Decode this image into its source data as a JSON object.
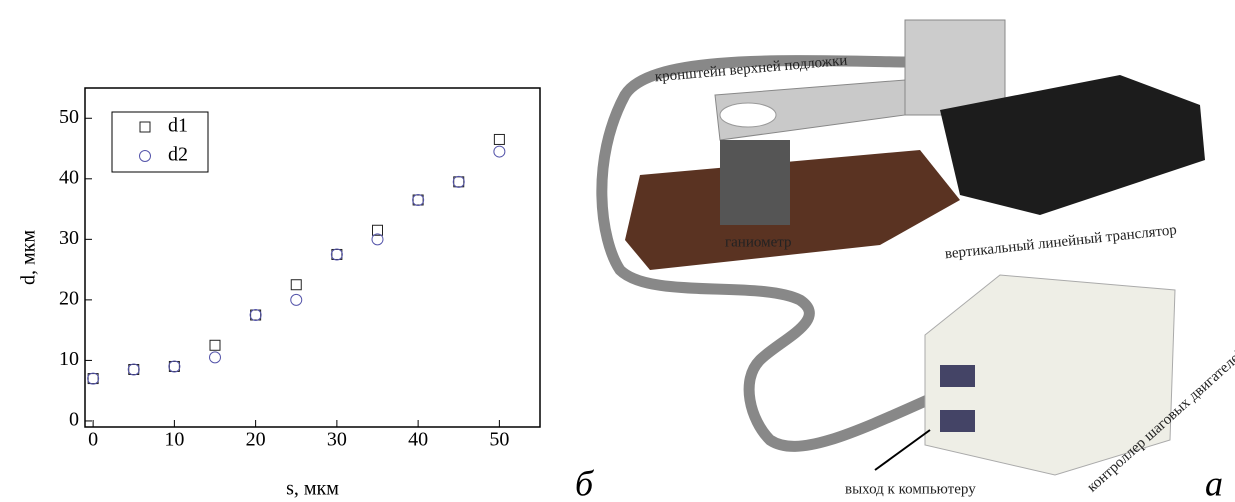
{
  "chart_data": {
    "type": "scatter",
    "xlabel": "s, мкм",
    "ylabel": "d, мкм",
    "panel_label": "б",
    "x": [
      0,
      5,
      10,
      15,
      20,
      25,
      30,
      35,
      40,
      45,
      50
    ],
    "series": [
      {
        "name": "d1",
        "color": "#222222",
        "marker": "square",
        "values": [
          7,
          8.5,
          9,
          12.5,
          17.5,
          22.5,
          27.5,
          31.5,
          36.5,
          39.5,
          46.5
        ]
      },
      {
        "name": "d2",
        "color": "#5555aa",
        "marker": "circle",
        "values": [
          7,
          8.5,
          9,
          10.5,
          17.5,
          20,
          27.5,
          30,
          36.5,
          39.5,
          44.5
        ]
      }
    ],
    "xlim": [
      -1,
      55
    ],
    "ylim": [
      -1,
      55
    ],
    "xticks": [
      0,
      10,
      20,
      30,
      40,
      50
    ],
    "yticks": [
      0,
      10,
      20,
      30,
      40,
      50
    ],
    "legend": "top-left"
  },
  "photo": {
    "panel_label": "а",
    "labels": [
      "кронштейн верхней подложки",
      "ганиометр",
      "вертикальный линейный транслятор",
      "контроллер шаговых двигателей",
      "выход к компьютеру"
    ]
  }
}
